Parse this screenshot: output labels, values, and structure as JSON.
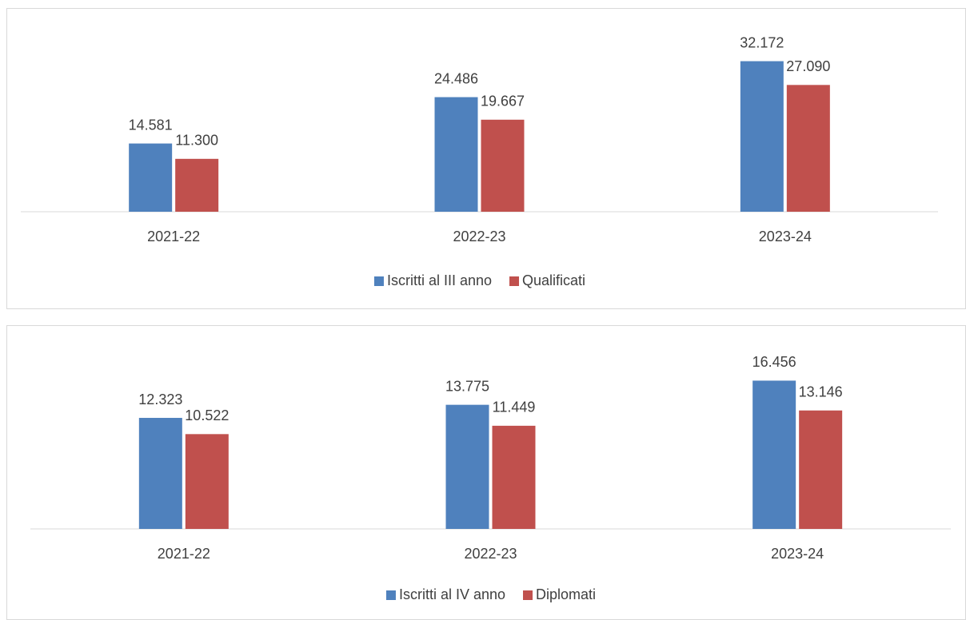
{
  "chart_data": [
    {
      "type": "bar",
      "categories": [
        "2021-22",
        "2022-23",
        "2023-24"
      ],
      "series": [
        {
          "name": "Iscritti al III anno",
          "color": "#4f81bd",
          "values": [
            14581,
            24486,
            32172
          ],
          "value_labels": [
            "14.581",
            "24.486",
            "32.172"
          ]
        },
        {
          "name": "Qualificati",
          "color": "#c0504d",
          "values": [
            11300,
            19667,
            27090
          ],
          "value_labels": [
            "11.300",
            "19.667",
            "27.090"
          ]
        }
      ],
      "ylim": [
        0,
        35000
      ],
      "legend": "bottom"
    },
    {
      "type": "bar",
      "categories": [
        "2021-22",
        "2022-23",
        "2023-24"
      ],
      "series": [
        {
          "name": "Iscritti al IV anno",
          "color": "#4f81bd",
          "values": [
            12323,
            13775,
            16456
          ],
          "value_labels": [
            "12.323",
            "13.775",
            "16.456"
          ]
        },
        {
          "name": "Diplomati",
          "color": "#c0504d",
          "values": [
            10522,
            11449,
            13146
          ],
          "value_labels": [
            "10.522",
            "11.449",
            "13.146"
          ]
        }
      ],
      "ylim": [
        0,
        18000
      ],
      "legend": "bottom"
    }
  ]
}
